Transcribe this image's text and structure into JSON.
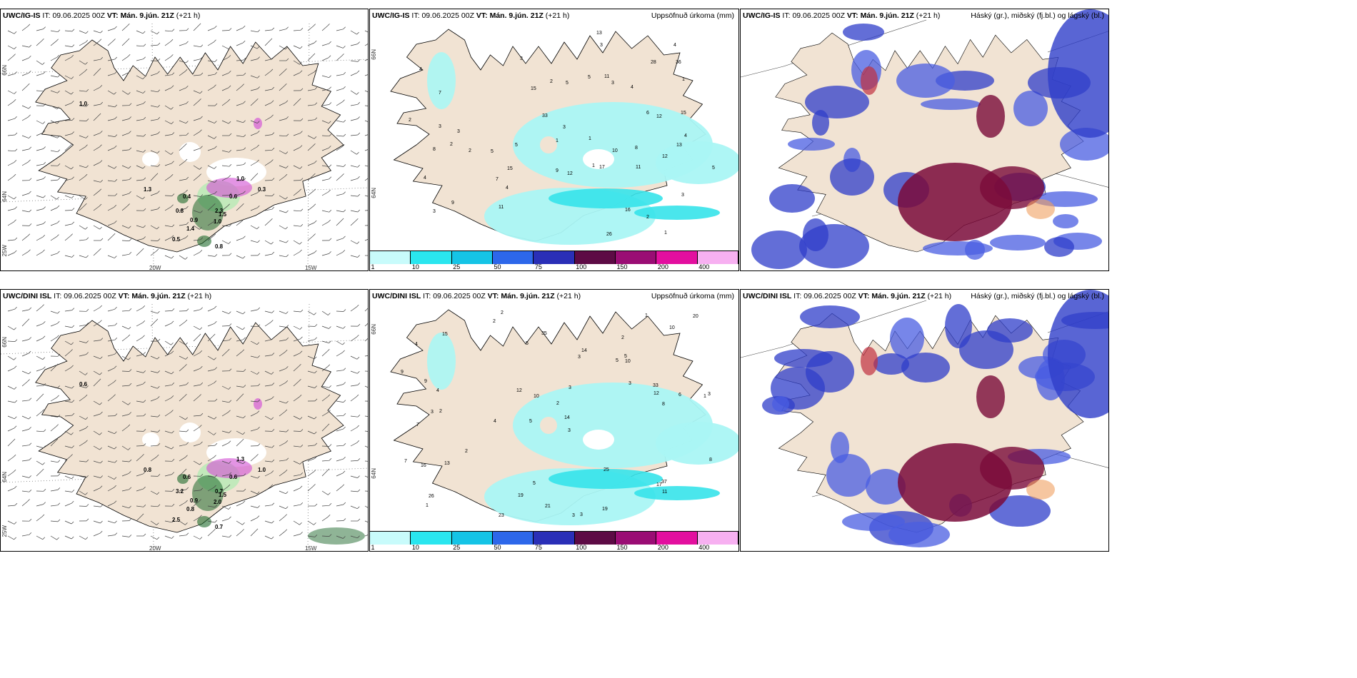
{
  "colors": {
    "land": "#f1e3d3",
    "sea": "#ffffff",
    "coast": "#000000",
    "precip_light": "#aaf6f4",
    "precip_mid": "#36e3ea",
    "cloud_low": "#2f3ec9",
    "cloud_mid": "#4a5ee2",
    "cloud_high": "#7a0b3a",
    "green_light": "#b7eab5",
    "green_dark": "#1f6a2d",
    "magenta": "#d45ad6"
  },
  "legend": {
    "colors": [
      "#c8fbfb",
      "#2ae6ef",
      "#15c4e6",
      "#2d67ea",
      "#2a2fb7",
      "#5d0b45",
      "#9a0d74",
      "#e30f9f",
      "#f7b0f1"
    ],
    "ticks": [
      "1",
      "10",
      "25",
      "50",
      "75",
      "100",
      "150",
      "200",
      "400"
    ]
  },
  "rows": [
    {
      "model": "UWC/IG-IS",
      "it_label": "IT:",
      "it_value": "09.06.2025 00Z",
      "vt_label": "VT:",
      "vt_value": "Mán. 9.jún. 21Z",
      "lead": "(+21 h)",
      "precip_title": "Uppsöfnuð úrkoma (mm)",
      "cloud_title": "Háský (gr.), miðský (fj.bl.) og lágský (bl.)",
      "lat_labels": [
        "66N",
        "64N",
        "25W"
      ],
      "lon_labels": [
        "20W",
        "15W"
      ],
      "precip_lat_labels": [
        "66N",
        "64N"
      ],
      "wind_numbers": [
        "1.0",
        "1.3",
        "0.4",
        "0.8",
        "0.9",
        "0.5",
        "1.4",
        "1.0",
        "0.6",
        "2.3",
        "1.5",
        "0.8",
        "1.0",
        "0.3"
      ],
      "precip_numbers": [
        "1",
        "2",
        "1",
        "4",
        "3",
        "7",
        "9",
        "5",
        "4",
        "2",
        "3",
        "2",
        "4",
        "3",
        "1",
        "4",
        "8",
        "3",
        "2",
        "3",
        "4",
        "5",
        "6",
        "5",
        "4",
        "3",
        "2",
        "1",
        "33",
        "36",
        "17",
        "8",
        "7",
        "11",
        "15",
        "12",
        "13",
        "16",
        "28",
        "26",
        "15",
        "12",
        "11",
        "13",
        "5",
        "3",
        "1",
        "3",
        "5",
        "9",
        "10",
        "15",
        "11",
        "12"
      ]
    },
    {
      "model": "UWC/DINI ISL",
      "it_label": "IT:",
      "it_value": "09.06.2025 00Z",
      "vt_label": "VT:",
      "vt_value": "Mán. 9.jún. 21Z",
      "lead": "(+21 h)",
      "precip_title": "Uppsöfnuð úrkoma (mm)",
      "cloud_title": "Háský (gr.), miðský (fj.bl.) og lágský (bl.)",
      "lat_labels": [
        "66N",
        "64N",
        "25W"
      ],
      "lon_labels": [
        "20W",
        "15W"
      ],
      "precip_lat_labels": [
        "66N",
        "64N"
      ],
      "wind_numbers": [
        "0.6",
        "0.8",
        "0.6",
        "3.2",
        "0.9",
        "2.5",
        "0.8",
        "2.0",
        "0.6",
        "0.7",
        "1.5",
        "0.7",
        "1.3",
        "1.0"
      ],
      "precip_numbers": [
        "2",
        "2",
        "1",
        "5",
        "3",
        "2",
        "4",
        "5",
        "7",
        "3",
        "2",
        "1",
        "2",
        "4",
        "3",
        "3",
        "5",
        "1",
        "3",
        "2",
        "4",
        "3",
        "3",
        "6",
        "7",
        "9",
        "10",
        "12",
        "37",
        "16",
        "17",
        "14",
        "13",
        "12",
        "25",
        "8",
        "33",
        "19",
        "20",
        "35",
        "26",
        "23",
        "19",
        "15",
        "21",
        "10",
        "11",
        "5",
        "9",
        "14",
        "5",
        "8",
        "3",
        "10"
      ]
    }
  ]
}
